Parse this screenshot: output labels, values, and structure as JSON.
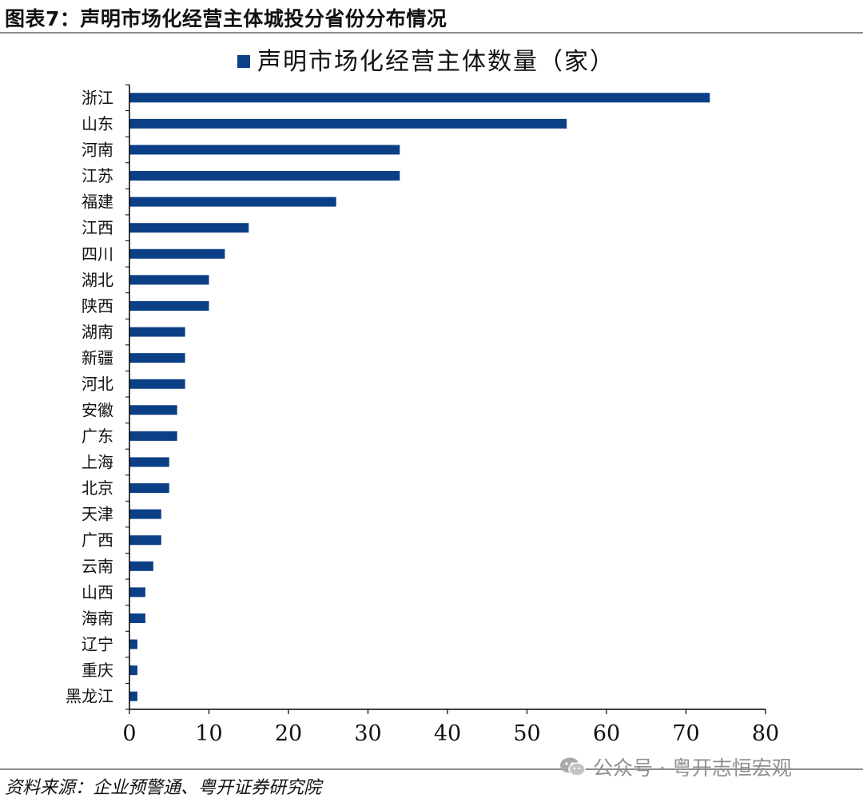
{
  "figure": {
    "title": "图表7：声明市场化经营主体城投分省份分布情况",
    "source": "资料来源：企业预警通、粤开证券研究院",
    "watermark": "公众号 · 粤开志恒宏观",
    "watermark_icon": "wechat-icon"
  },
  "chart_data": {
    "type": "bar",
    "orientation": "horizontal",
    "categories": [
      "浙江",
      "山东",
      "河南",
      "江苏",
      "福建",
      "江西",
      "四川",
      "湖北",
      "陕西",
      "湖南",
      "新疆",
      "河北",
      "安徽",
      "广东",
      "上海",
      "北京",
      "天津",
      "广西",
      "云南",
      "山西",
      "海南",
      "辽宁",
      "重庆",
      "黑龙江"
    ],
    "series": [
      {
        "name": "声明市场化经营主体数量（家）",
        "values": [
          73,
          55,
          34,
          34,
          26,
          15,
          12,
          10,
          10,
          7,
          7,
          7,
          6,
          6,
          5,
          5,
          4,
          4,
          3,
          2,
          2,
          1,
          1,
          1
        ],
        "color": "#0b3f86"
      }
    ],
    "xlim": [
      0,
      80
    ],
    "xticks": [
      0,
      10,
      20,
      30,
      40,
      50,
      60,
      70,
      80
    ],
    "legend_position": "top-center",
    "grid": false
  }
}
